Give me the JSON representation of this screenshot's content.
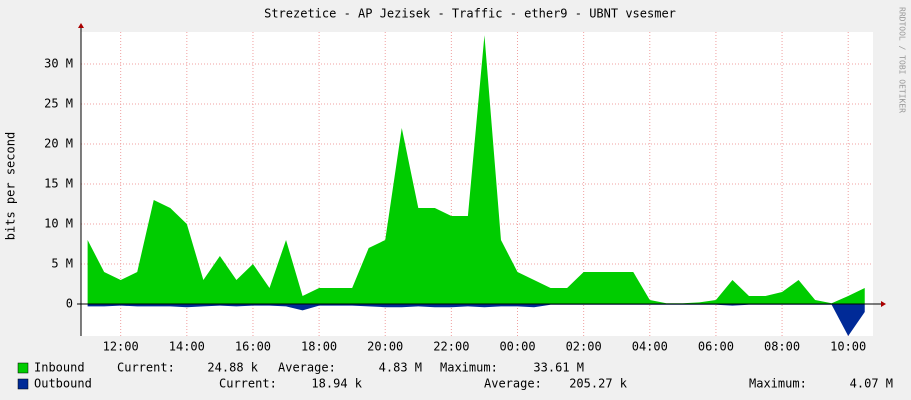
{
  "chart_data": {
    "type": "area",
    "title": "Strezetice - AP Jezisek - Traffic - ether9 - UBNT vsesmer",
    "y_label": "bits per second",
    "side_label": "RRDTOOL / TOBI OETIKER",
    "grid": true,
    "x": [
      11,
      11.5,
      12,
      12.5,
      13,
      13.5,
      14,
      14.5,
      15,
      15.5,
      16,
      16.5,
      17,
      17.5,
      18,
      18.5,
      19,
      19.5,
      20,
      20.5,
      21,
      21.5,
      22,
      22.5,
      23,
      23.5,
      24,
      24.5,
      25,
      25.5,
      26,
      26.5,
      27,
      27.5,
      28,
      28.5,
      29,
      29.5,
      30,
      30.5,
      31,
      31.5,
      32,
      32.5,
      33,
      33.5,
      34,
      34.5
    ],
    "xlim": [
      10.8,
      34.75
    ],
    "xticks": [
      {
        "value": 12,
        "label": "12:00"
      },
      {
        "value": 14,
        "label": "14:00"
      },
      {
        "value": 16,
        "label": "16:00"
      },
      {
        "value": 18,
        "label": "18:00"
      },
      {
        "value": 20,
        "label": "20:00"
      },
      {
        "value": 22,
        "label": "22:00"
      },
      {
        "value": 24,
        "label": "00:00"
      },
      {
        "value": 26,
        "label": "02:00"
      },
      {
        "value": 28,
        "label": "04:00"
      },
      {
        "value": 30,
        "label": "06:00"
      },
      {
        "value": 32,
        "label": "08:00"
      },
      {
        "value": 34,
        "label": "10:00"
      }
    ],
    "ylim": [
      -4,
      34
    ],
    "yticks": [
      0,
      {
        "value": 5,
        "label": "5 M"
      },
      {
        "value": 10,
        "label": "10 M"
      },
      {
        "value": 15,
        "label": "15 M"
      },
      {
        "value": 20,
        "label": "20 M"
      },
      {
        "value": 25,
        "label": "25 M"
      },
      {
        "value": 30,
        "label": "30 M"
      }
    ],
    "series": [
      {
        "name": "Inbound",
        "color": "#00cc00",
        "values": [
          8,
          4,
          3,
          4,
          13,
          12,
          10,
          3,
          6,
          3,
          5,
          2,
          8,
          1,
          2,
          2,
          2,
          7,
          8,
          22,
          12,
          12,
          11,
          11,
          33.6,
          8,
          4,
          3,
          2,
          2,
          4,
          4,
          4,
          4,
          0.5,
          0.1,
          0.1,
          0.2,
          0.5,
          3,
          1,
          1,
          1.5,
          3,
          0.5,
          0.1,
          1,
          2
        ],
        "stats": [
          {
            "label": "Current:",
            "value": "24.88 k"
          },
          {
            "label": "Average:",
            "value": "4.83 M"
          },
          {
            "label": "Maximum:",
            "value": "33.61 M"
          }
        ]
      },
      {
        "name": "Outbound",
        "color": "#002a97",
        "values": [
          -0.3,
          -0.3,
          -0.2,
          -0.3,
          -0.3,
          -0.3,
          -0.4,
          -0.3,
          -0.2,
          -0.3,
          -0.2,
          -0.2,
          -0.3,
          -0.8,
          -0.2,
          -0.2,
          -0.2,
          -0.3,
          -0.4,
          -0.4,
          -0.3,
          -0.4,
          -0.4,
          -0.3,
          -0.4,
          -0.3,
          -0.3,
          -0.4,
          -0.1,
          -0.1,
          -0.1,
          -0.1,
          -0.1,
          -0.1,
          -0.1,
          -0.1,
          -0.1,
          -0.1,
          -0.1,
          -0.2,
          -0.1,
          -0.1,
          -0.1,
          -0.1,
          -0.1,
          -0.1,
          -4,
          -1
        ],
        "stats": [
          {
            "label": "Current:",
            "value": "18.94 k"
          },
          {
            "label": "Average:",
            "value": "205.27 k"
          },
          {
            "label": "Maximum:",
            "value": "4.07 M"
          }
        ]
      }
    ]
  }
}
